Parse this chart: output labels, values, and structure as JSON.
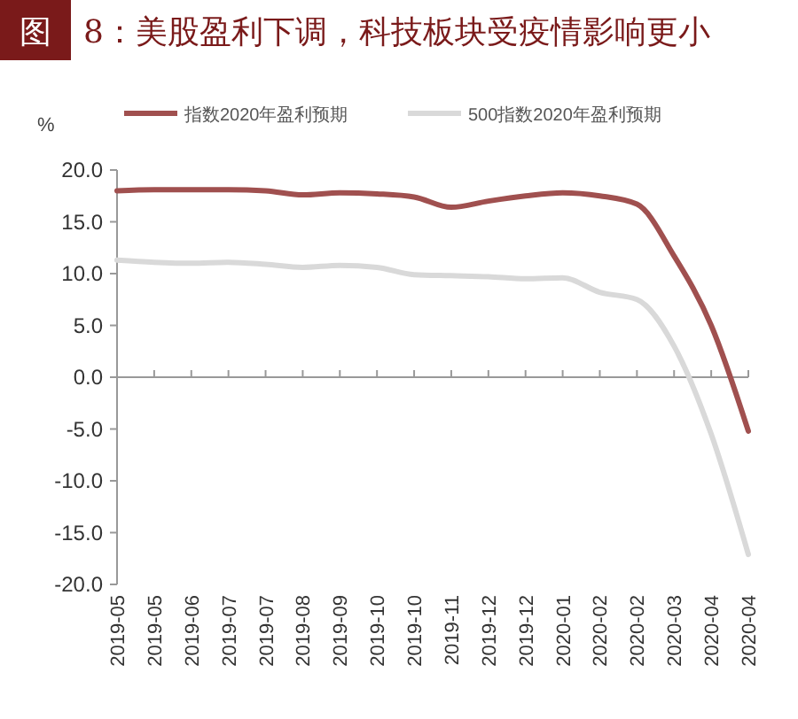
{
  "chart_data": {
    "type": "line",
    "title": "图 8：美股盈利下调，科技板块受疫情影响更小",
    "ylabel": "%",
    "categories": [
      "2019-05",
      "2019-05",
      "2019-06",
      "2019-07",
      "2019-07",
      "2019-08",
      "2019-09",
      "2019-10",
      "2019-10",
      "2019-11",
      "2019-12",
      "2019-12",
      "2020-01",
      "2020-02",
      "2020-02",
      "2020-03",
      "2020-04",
      "2020-04"
    ],
    "series": [
      {
        "name": "指数2020年盈利预期",
        "color": "#a0504f",
        "values": [
          18.0,
          18.1,
          18.1,
          18.1,
          18.0,
          17.6,
          17.8,
          17.7,
          17.4,
          16.4,
          17.0,
          17.5,
          17.8,
          17.5,
          16.7,
          11.7,
          5.0,
          -5.2
        ]
      },
      {
        "name": "500指数2020年盈利预期",
        "color": "#d9d9d9",
        "values": [
          11.3,
          11.1,
          11.0,
          11.1,
          10.9,
          10.6,
          10.8,
          10.6,
          9.9,
          9.8,
          9.7,
          9.5,
          9.6,
          8.2,
          7.5,
          3.0,
          -5.5,
          -17.1
        ]
      }
    ],
    "ylim": [
      -20,
      20
    ],
    "yticks": [
      {
        "value": -20,
        "label": "-20.0"
      },
      {
        "value": -15,
        "label": "-15.0"
      },
      {
        "value": -10,
        "label": "-10.0"
      },
      {
        "value": -5,
        "label": "-5.0"
      },
      {
        "value": 0,
        "label": "0.0"
      },
      {
        "value": 5,
        "label": "5.0"
      },
      {
        "value": 10,
        "label": "10.0"
      },
      {
        "value": 15,
        "label": "15.0"
      },
      {
        "value": 20,
        "label": "20.0"
      }
    ],
    "legend": "top"
  }
}
